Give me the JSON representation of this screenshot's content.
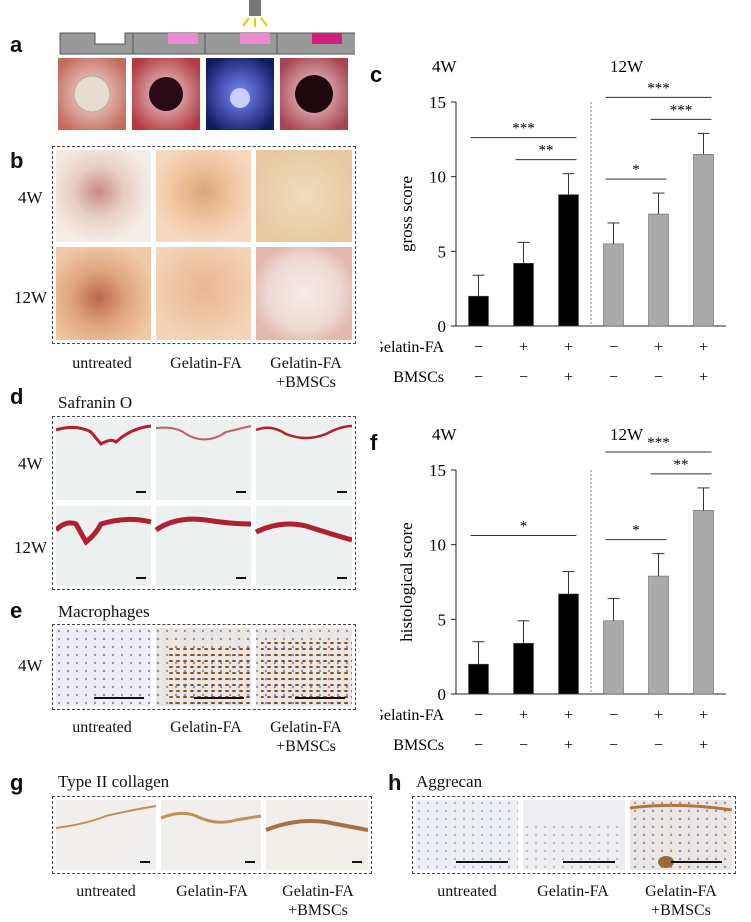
{
  "panels": {
    "a": {
      "letter": "a"
    },
    "b": {
      "letter": "b",
      "rows": [
        "4W",
        "12W"
      ],
      "captions": [
        "untreated",
        "Gelatin-FA",
        "Gelatin-FA",
        "+BMSCs"
      ]
    },
    "c": {
      "letter": "c"
    },
    "d": {
      "letter": "d",
      "title": "Safranin O",
      "rows": [
        "4W",
        "12W"
      ]
    },
    "e": {
      "letter": "e",
      "title": "Macrophages",
      "rows": [
        "4W"
      ],
      "captions": [
        "untreated",
        "Gelatin-FA",
        "Gelatin-FA",
        "+BMSCs"
      ]
    },
    "f": {
      "letter": "f"
    },
    "g": {
      "letter": "g",
      "title": "Type II collagen",
      "captions": [
        "untreated",
        "Gelatin-FA",
        "Gelatin-FA",
        "+BMSCs"
      ]
    },
    "h": {
      "letter": "h",
      "title": "Aggrecan",
      "captions": [
        "untreated",
        "Gelatin-FA",
        "Gelatin-FA",
        "+BMSCs"
      ]
    }
  },
  "chart_data": [
    {
      "type": "bar",
      "panel": "c",
      "ylabel": "gross score",
      "ylim": [
        0,
        15
      ],
      "yticks": [
        0,
        5,
        10,
        15
      ],
      "groups": [
        "4W",
        "12W"
      ],
      "conditions": {
        "labels": [
          "Gelatin-FA",
          "BMSCs"
        ],
        "gelatin": [
          "−",
          "+",
          "+",
          "−",
          "+",
          "+"
        ],
        "bmscs": [
          "−",
          "−",
          "+",
          "−",
          "−",
          "+"
        ]
      },
      "series": [
        {
          "name": "4W",
          "color": "#000000",
          "values": [
            2.0,
            4.2,
            8.8
          ],
          "errors": [
            1.4,
            1.4,
            1.4
          ]
        },
        {
          "name": "12W",
          "color": "#aaaaaa",
          "values": [
            5.5,
            7.5,
            11.5
          ],
          "errors": [
            1.4,
            1.4,
            1.4
          ]
        }
      ],
      "significance": [
        {
          "from": 0,
          "to": 2,
          "label": "***"
        },
        {
          "from": 1,
          "to": 2,
          "label": "**"
        },
        {
          "from": 3,
          "to": 4,
          "label": "*"
        },
        {
          "from": 3,
          "to": 5,
          "label": "***"
        },
        {
          "from": 4,
          "to": 5,
          "label": "***"
        }
      ]
    },
    {
      "type": "bar",
      "panel": "f",
      "ylabel": "histological score",
      "ylim": [
        0,
        15
      ],
      "yticks": [
        0,
        5,
        10,
        15
      ],
      "groups": [
        "4W",
        "12W"
      ],
      "conditions": {
        "labels": [
          "Gelatin-FA",
          "BMSCs"
        ],
        "gelatin": [
          "−",
          "+",
          "+",
          "−",
          "+",
          "+"
        ],
        "bmscs": [
          "−",
          "−",
          "+",
          "−",
          "−",
          "+"
        ]
      },
      "series": [
        {
          "name": "4W",
          "color": "#000000",
          "values": [
            2.0,
            3.4,
            6.7
          ],
          "errors": [
            1.5,
            1.5,
            1.5
          ]
        },
        {
          "name": "12W",
          "color": "#aaaaaa",
          "values": [
            4.9,
            7.9,
            12.3
          ],
          "errors": [
            1.5,
            1.5,
            1.5
          ]
        }
      ],
      "significance": [
        {
          "from": 0,
          "to": 2,
          "label": "*"
        },
        {
          "from": 3,
          "to": 4,
          "label": "*"
        },
        {
          "from": 3,
          "to": 5,
          "label": "***"
        },
        {
          "from": 4,
          "to": 5,
          "label": "**"
        }
      ]
    }
  ],
  "colors": {
    "black_bar": "#000000",
    "gray_bar": "#aaaaaa",
    "safranin": "#b02030",
    "ihc_brown": "#7a4a20"
  }
}
